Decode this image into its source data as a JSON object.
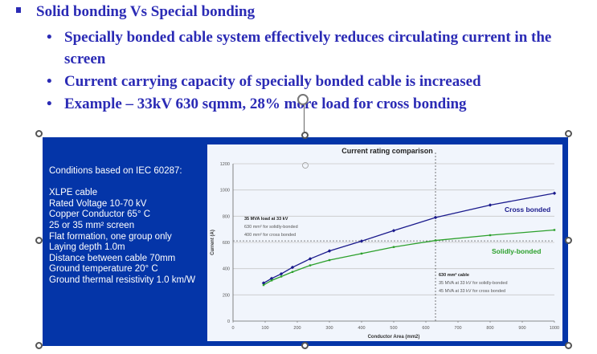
{
  "slide": {
    "bullet_main": "Solid bonding Vs Special bonding",
    "sub_bullets": [
      "Specially bonded cable system effectively reduces circulating current in the screen",
      "Current carrying capacity of specially bonded cable is increased",
      "Example – 33kV 630 sqmm, 28% more load for cross bonding"
    ]
  },
  "conditions": {
    "title": "Conditions based on IEC 60287:",
    "items": [
      "XLPE cable",
      "Rated Voltage 10-70 kV",
      "Copper Conductor 65° C",
      "25 or 35 mm² screen",
      "Flat formation, one group only",
      "Laying depth 1.0m",
      "Distance between cable 70mm",
      "Ground temperature 20° C",
      "Ground thermal resistivity 1.0 km/W"
    ]
  },
  "colors": {
    "panel": "#0435a8",
    "text_blue": "#2b2bb5",
    "cross_bonded": "#1a1a8c",
    "solidly_bonded": "#2ca02c"
  },
  "chart_data": {
    "type": "line",
    "title": "Current rating comparison",
    "xlabel": "Conductor Area (mm2)",
    "ylabel": "Current (A)",
    "xlim": [
      0,
      1000
    ],
    "ylim": [
      0,
      1200
    ],
    "xticks": [
      0,
      100,
      200,
      300,
      400,
      500,
      600,
      700,
      800,
      900,
      1000
    ],
    "yticks": [
      0,
      200,
      400,
      600,
      800,
      1000,
      1200
    ],
    "grid": "horizontal",
    "x": [
      95,
      120,
      150,
      185,
      240,
      300,
      400,
      500,
      630,
      800,
      1000
    ],
    "series": [
      {
        "name": "Cross bonded",
        "values": [
          290,
          325,
          360,
          410,
          475,
          535,
          610,
          690,
          790,
          885,
          975
        ]
      },
      {
        "name": "Solidly-bonded",
        "values": [
          275,
          310,
          340,
          375,
          425,
          465,
          515,
          565,
          615,
          655,
          695
        ]
      }
    ],
    "reference_lines": {
      "horizontal_y": 612,
      "vertical_x": 630
    },
    "annotations": [
      {
        "title": "35 MVA load at 33 kV",
        "lines": [
          "630 mm² for solidly-bonded",
          "400 mm² for cross bonded"
        ]
      },
      {
        "title": "630 mm² cable",
        "lines": [
          "35 MVA at 33 kV for solidly-bonded",
          "45 MVA at 33 kV for cross bonded"
        ]
      }
    ]
  }
}
